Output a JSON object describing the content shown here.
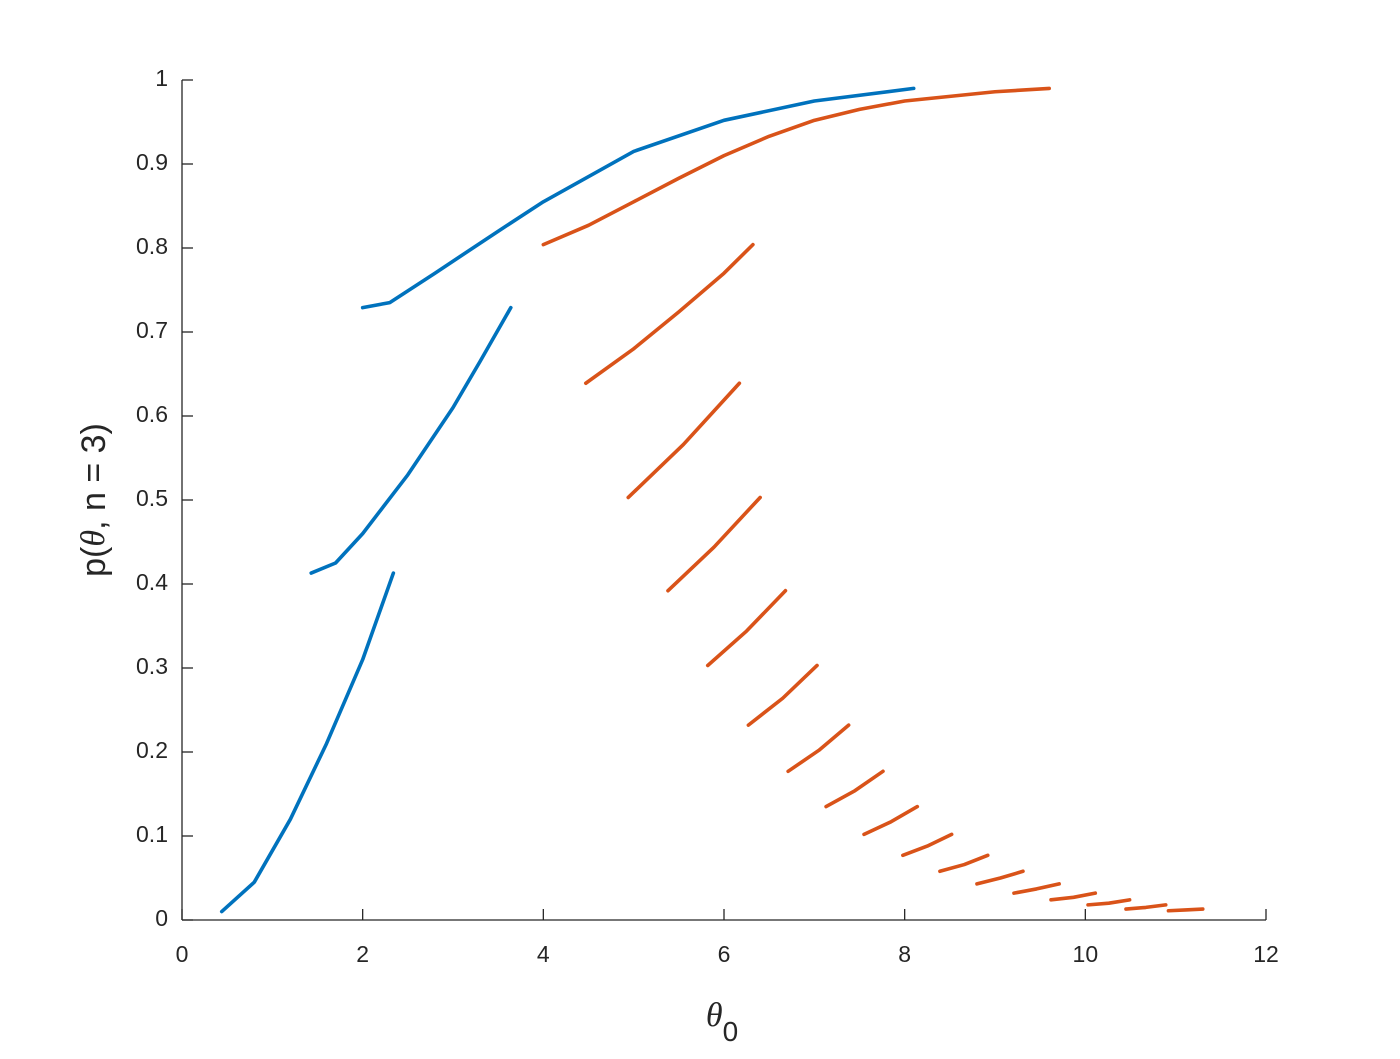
{
  "chart_data": {
    "type": "line",
    "xlabel": [
      "θ",
      "0"
    ],
    "ylabel": [
      "p(",
      "θ",
      ", n = 3)"
    ],
    "xlim": [
      0,
      12
    ],
    "xticks": [
      0,
      2,
      4,
      6,
      8,
      10,
      12
    ],
    "ylim": [
      0,
      1
    ],
    "yticks": [
      0,
      0.1,
      0.2,
      0.3,
      0.4,
      0.5,
      0.6,
      0.7,
      0.8,
      0.9,
      1
    ],
    "grid": false,
    "series": [
      {
        "color": "#0072BD",
        "x": [
          0.44,
          0.8,
          1.2,
          1.6,
          2.0,
          2.34,
          null,
          1.43,
          1.7,
          2.0,
          2.5,
          3.0,
          3.3,
          3.64,
          null,
          2.0,
          2.3,
          2.8,
          3.5,
          4.0,
          5.0,
          6.0,
          7.0,
          8.1
        ],
        "values": [
          0.01,
          0.045,
          0.12,
          0.21,
          0.31,
          0.413,
          null,
          0.413,
          0.425,
          0.46,
          0.53,
          0.61,
          0.665,
          0.729,
          null,
          0.729,
          0.735,
          0.77,
          0.82,
          0.855,
          0.915,
          0.952,
          0.975,
          0.99
        ]
      },
      {
        "color": "#D95319",
        "x": [
          4.0,
          4.5,
          5.0,
          5.5,
          6.0,
          6.5,
          7.0,
          7.5,
          8.0,
          9.0,
          9.6,
          null,
          4.47,
          5.0,
          5.5,
          6.0,
          6.32,
          null,
          4.94,
          5.55,
          6.17,
          null,
          5.38,
          5.89,
          6.4,
          null,
          5.82,
          6.25,
          6.68,
          null,
          6.27,
          6.65,
          7.03,
          null,
          6.71,
          7.05,
          7.38,
          null,
          7.13,
          7.45,
          7.76,
          null,
          7.55,
          7.85,
          8.14,
          null,
          7.98,
          8.25,
          8.52,
          null,
          8.39,
          8.66,
          8.92,
          null,
          8.8,
          9.06,
          9.31,
          null,
          9.21,
          9.46,
          9.71,
          null,
          9.62,
          9.87,
          10.11,
          null,
          10.03,
          10.26,
          10.49,
          null,
          10.45,
          10.67,
          10.89,
          null,
          10.92,
          11.11,
          11.3
        ],
        "values": [
          0.804,
          0.827,
          0.855,
          0.883,
          0.91,
          0.933,
          0.952,
          0.965,
          0.975,
          0.986,
          0.99,
          null,
          0.639,
          0.68,
          0.724,
          0.77,
          0.804,
          null,
          0.503,
          0.566,
          0.639,
          null,
          0.392,
          0.444,
          0.503,
          null,
          0.303,
          0.344,
          0.392,
          null,
          0.232,
          0.264,
          0.303,
          null,
          0.177,
          0.202,
          0.232,
          null,
          0.135,
          0.154,
          0.177,
          null,
          0.102,
          0.117,
          0.135,
          null,
          0.077,
          0.088,
          0.102,
          null,
          0.058,
          0.066,
          0.077,
          null,
          0.043,
          0.05,
          0.058,
          null,
          0.032,
          0.037,
          0.043,
          null,
          0.024,
          0.027,
          0.032,
          null,
          0.018,
          0.02,
          0.024,
          null,
          0.013,
          0.015,
          0.018,
          null,
          0.011,
          0.012,
          0.013
        ]
      }
    ]
  }
}
